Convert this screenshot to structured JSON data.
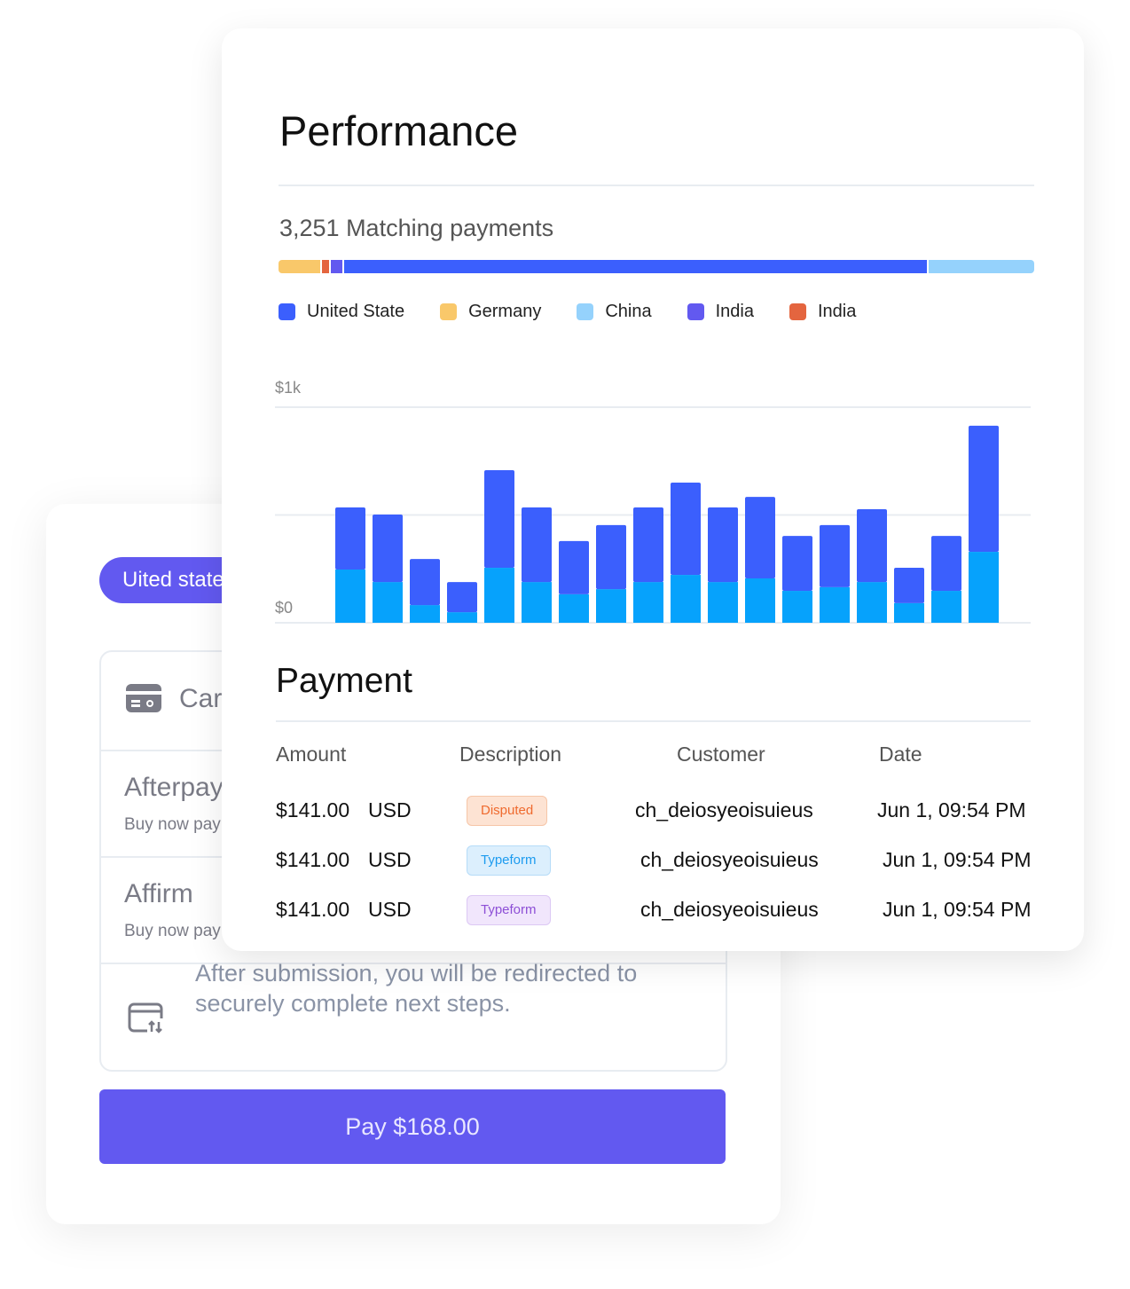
{
  "back": {
    "country_pill": "Uited state",
    "card_label": "Card",
    "afterpay": {
      "title": "Afterpay",
      "sub": "Buy now pay later"
    },
    "affirm": {
      "title": "Affirm",
      "sub": "Buy now pay later"
    },
    "note": "After submission, you will be redirected to securely complete next steps.",
    "pay_button": "Pay $168.00"
  },
  "performance": {
    "title": "Performance",
    "matching": "3,251 Matching payments",
    "distribution": [
      {
        "name": "Germany",
        "color": "#f9c86a",
        "percent": 5.6
      },
      {
        "name": "India",
        "color": "#e4653f",
        "percent": 0.9
      },
      {
        "name": "India",
        "color": "#6259f0",
        "percent": 1.6
      },
      {
        "name": "United State",
        "color": "#3b5ffd",
        "percent": 77.8
      },
      {
        "name": "China",
        "color": "#95d2fc",
        "percent": 14.1
      }
    ],
    "legend": [
      {
        "label": "United State",
        "color": "#3b5ffd"
      },
      {
        "label": "Germany",
        "color": "#f9c86a"
      },
      {
        "label": "China",
        "color": "#95d2fc"
      },
      {
        "label": "India",
        "color": "#6259f0"
      },
      {
        "label": "India",
        "color": "#e4653f"
      }
    ]
  },
  "chart_data": {
    "type": "bar",
    "stacked": true,
    "y_tick_labels": [
      "$1k",
      "$0"
    ],
    "ylim": [
      0,
      1000
    ],
    "grid": true,
    "series": [
      {
        "color": "#06a2fc",
        "values": [
          247,
          189,
          82,
          49,
          255,
          189,
          132,
          156,
          189,
          222,
          189,
          206,
          148,
          165,
          189,
          91,
          148,
          329
        ]
      },
      {
        "color": "#3b5ffd",
        "values": [
          288,
          313,
          214,
          140,
          453,
          346,
          247,
          297,
          346,
          428,
          346,
          378,
          255,
          288,
          338,
          164,
          255,
          585
        ]
      }
    ]
  },
  "payment": {
    "title": "Payment",
    "headers": [
      "Amount",
      "Description",
      "Customer",
      "Date"
    ],
    "rows": [
      {
        "amount": "$141.00",
        "currency": "USD",
        "badge": "Disputed",
        "customer": "ch_deiosyeoisuieus",
        "date": "Jun 1, 09:54 PM"
      },
      {
        "amount": "$141.00",
        "currency": "USD",
        "badge": "Typeform",
        "customer": "ch_deiosyeoisuieus",
        "date": "Jun 1, 09:54 PM"
      },
      {
        "amount": "$141.00",
        "currency": "USD",
        "badge": "Typeform",
        "customer": "ch_deiosyeoisuieus",
        "date": "Jun 1, 09:54 PM"
      }
    ]
  }
}
